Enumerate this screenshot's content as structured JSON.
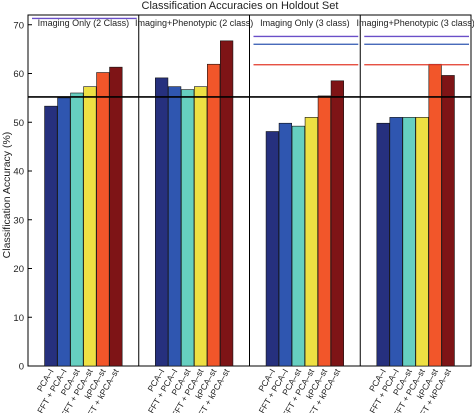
{
  "chart_data": {
    "type": "bar",
    "title": "Classification Accuracies on Holdout Set",
    "ylabel": "Classification Accuracy (%)",
    "xlabel": "",
    "ylim": [
      0,
      72
    ],
    "yticks": [
      0,
      10,
      20,
      30,
      40,
      50,
      60,
      70
    ],
    "grid": false,
    "categories": [
      "PCA–I",
      "FFT + PCA–I",
      "PCA–st",
      "FFT + PCA–st",
      "kPCA–st",
      "FFT + kPCA–st"
    ],
    "bar_colors": [
      "#26307e",
      "#2f56b0",
      "#66cfc0",
      "#eee043",
      "#f2562a",
      "#7e1416"
    ],
    "groups": [
      {
        "label": "Imaging Only (2 Class)",
        "values": [
          53.3,
          55.0,
          56.0,
          57.3,
          60.2,
          61.3
        ],
        "reference_lines": [
          {
            "value": 71.3,
            "color": "#6a4fc8"
          }
        ]
      },
      {
        "label": "Imaging+Phenotypic (2 class)",
        "values": [
          59.1,
          57.3,
          56.7,
          57.3,
          61.9,
          66.7
        ],
        "reference_lines": []
      },
      {
        "label": "Imaging Only (3 class)",
        "values": [
          48.1,
          49.8,
          49.2,
          51.0,
          55.4,
          58.5
        ],
        "reference_lines": [
          {
            "value": 67.6,
            "color": "#6a4fc8"
          },
          {
            "value": 66.0,
            "color": "#2f56b0"
          },
          {
            "value": 61.8,
            "color": "#e23a2a"
          }
        ]
      },
      {
        "label": "Imaging+Phenotypic (3 class)",
        "values": [
          49.8,
          51.0,
          51.0,
          51.0,
          61.9,
          59.6
        ],
        "reference_lines": [
          {
            "value": 67.6,
            "color": "#6a4fc8"
          },
          {
            "value": 66.0,
            "color": "#2f56b0"
          },
          {
            "value": 61.8,
            "color": "#e23a2a"
          }
        ]
      }
    ],
    "baseline": {
      "value": 55.2,
      "color": "#000000"
    }
  }
}
